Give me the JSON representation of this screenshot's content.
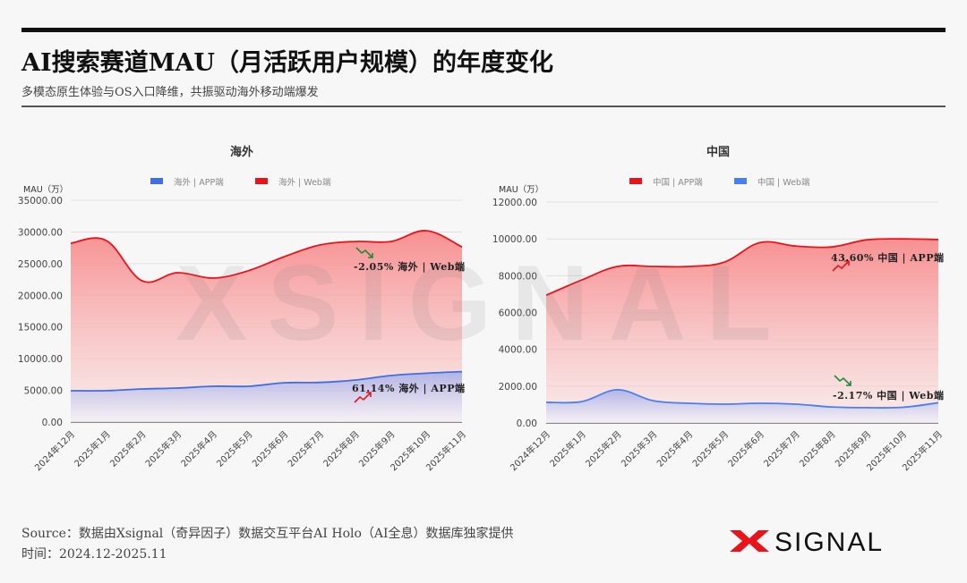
{
  "header": {
    "title": "AI搜索赛道MAU（月活跃用户规模）的年度变化",
    "subtitle": "多模态原生体验与OS入口降维，共振驱动海外移动端爆发"
  },
  "footer": {
    "source": "Source：数据由Xsignal（奇异因子）数据交互平台AI Holo（AI全息）数据库独家提供",
    "time": "时间：2024.12-2025.11",
    "logo_text": "SIGNAL",
    "logo_mark": "X"
  },
  "watermark": "XSIGNAL",
  "colors": {
    "red": "#e8141c",
    "blue": "#4a76e8",
    "up": "#e8141c",
    "down": "#1f8a3a"
  },
  "chart_data": [
    {
      "type": "area",
      "title": "海外",
      "ylabel": "MAU（万）",
      "xlabel": "",
      "ylim": [
        0,
        35000
      ],
      "yticks": [
        "0.00",
        "5000.00",
        "10000.00",
        "15000.00",
        "20000.00",
        "25000.00",
        "30000.00",
        "35000.00"
      ],
      "grid": true,
      "legend_position": "top",
      "categories": [
        "2024年12月",
        "2025年1月",
        "2025年2月",
        "2025年3月",
        "2025年4月",
        "2025年5月",
        "2025年6月",
        "2025年7月",
        "2025年8月",
        "2025年9月",
        "2025年10月",
        "2025年11月"
      ],
      "series": [
        {
          "name": "海外 | APP端",
          "color": "#3f6fe0",
          "values": [
            4940,
            4950,
            5220,
            5360,
            5650,
            5650,
            6200,
            6250,
            6630,
            7340,
            7700,
            7960
          ]
        },
        {
          "name": "海外 | Web端",
          "color": "#e8141c",
          "values": [
            28220,
            28650,
            22300,
            23570,
            22720,
            23900,
            26100,
            27940,
            28500,
            28500,
            30200,
            27640
          ]
        }
      ],
      "annotations": [
        {
          "text": "-2.05%  海外 | Web端",
          "trend": "down",
          "series": "海外 | Web端"
        },
        {
          "text": "61.14%  海外 | APP端",
          "trend": "up",
          "series": "海外 | APP端"
        }
      ]
    },
    {
      "type": "area",
      "title": "中国",
      "ylabel": "MAU（万）",
      "xlabel": "",
      "ylim": [
        0,
        12000
      ],
      "yticks": [
        "0.00",
        "2000.00",
        "4000.00",
        "6000.00",
        "8000.00",
        "10000.00",
        "12000.00"
      ],
      "grid": true,
      "legend_position": "top",
      "categories": [
        "2024年12月",
        "2025年1月",
        "2025年2月",
        "2025年3月",
        "2025年4月",
        "2025年5月",
        "2025年6月",
        "2025年7月",
        "2025年8月",
        "2025年9月",
        "2025年10月",
        "2025年11月"
      ],
      "series": [
        {
          "name": "中国 | APP端",
          "color": "#e8141c",
          "values": [
            6940,
            7770,
            8500,
            8500,
            8500,
            8740,
            9800,
            9610,
            9560,
            9950,
            10000,
            9965
          ]
        },
        {
          "name": "中国 | Web端",
          "color": "#4a7ff0",
          "values": [
            1120,
            1160,
            1800,
            1210,
            1070,
            1020,
            1070,
            1020,
            870,
            830,
            850,
            1096
          ]
        }
      ],
      "annotations": [
        {
          "text": "43.60%  中国 | APP端",
          "trend": "up",
          "series": "中国 | APP端"
        },
        {
          "text": "-2.17%  中国 | Web端",
          "trend": "down",
          "series": "中国 | Web端"
        }
      ]
    }
  ]
}
